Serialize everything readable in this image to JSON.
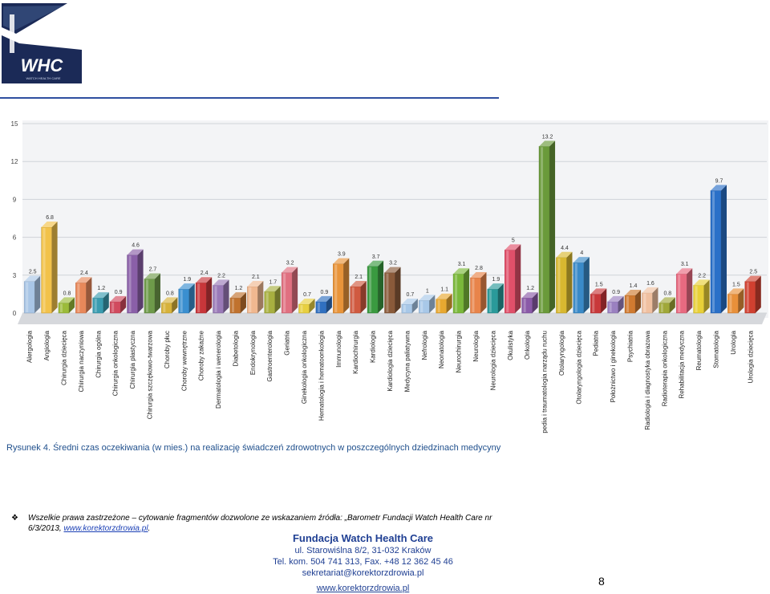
{
  "brand": {
    "logo_text": "WHC",
    "logo_subtext": "WATCH HEALTH CARE",
    "colors": {
      "navy": "#1b2a57",
      "rule": "#2f4fa0"
    }
  },
  "caption": {
    "label": "Rysunek 4.",
    "text": "Średni czas oczekiwania (w mies.) na realizację świadczeń zdrowotnych w poszczególnych dziedzinach medycyny"
  },
  "note": {
    "bullet": "❖",
    "text": "Wszelkie prawa zastrzeżone – cytowanie fragmentów dozwolone ze wskazaniem źródła: „Barometr Fundacji Watch Health Care nr 6/3/2013,",
    "link": "www.korektorzdrowia.pl",
    "end": "."
  },
  "footer": {
    "org": "Fundacja Watch Health Care",
    "address": "ul. Starowiślna 8/2, 31-032 Kraków",
    "phone": "Tel. kom. 504 741 313, Fax. +48 12 362 45 46",
    "email": "sekretariat@korektorzdrowia.pl",
    "web": "www.korektorzdrowia.pl"
  },
  "page_number": "8",
  "chart_data": {
    "type": "bar",
    "title": "",
    "xlabel": "",
    "ylabel": "",
    "ylim": [
      0,
      15
    ],
    "yticks": [
      "0",
      "3",
      "6",
      "9",
      "12",
      "15"
    ],
    "grid": true,
    "legend": "none",
    "categories": [
      "Alergologia",
      "Angiologia",
      "Chirurgia dziecięca",
      "Chirurgia naczyniowa",
      "Chirurgia ogólna",
      "Chirurgia onkologiczna",
      "Chirurgia plastyczna",
      "Chirurgia szczękowo-twarzowa",
      "Choroby płuc",
      "Choroby wewnętrzne",
      "Choroby zakaźne",
      "Dermatologia i wenerologia",
      "Diabetologia",
      "Endokrynologia",
      "Gastroenterologia",
      "Geriatria",
      "Ginekologia onkologiczna",
      "Hematologia i hematoonkologia",
      "Immunologia",
      "Kardiochirurgia",
      "Kardiologia",
      "Kardiologia dziecięca",
      "Medycyna paliatywna",
      "Nefrologia",
      "Neonatologia",
      "Neurochirurgia",
      "Neurologia",
      "Neurologia dziecięca",
      "Okulistyka",
      "Onkologia",
      "Ortopedia i traumatologia narządu ruchu",
      "Otolaryngologia",
      "Otolaryngologia dziecięca",
      "Pediatria",
      "Położnictwo i ginekologia",
      "Psychiatria",
      "Radiologia i diagnostyka obrazowa",
      "Radioterapia onkologiczna",
      "Rehabilitacja medyczna",
      "Reumatologia",
      "Stomatologia",
      "Urologia",
      "Urologia dziecięca"
    ],
    "values": [
      2.5,
      6.8,
      0.8,
      2.4,
      1.2,
      0.9,
      4.6,
      2.7,
      0.8,
      1.9,
      2.4,
      2.2,
      1.2,
      2.1,
      1.7,
      3.2,
      0.7,
      0.9,
      3.9,
      2.1,
      3.7,
      3.2,
      0.7,
      1,
      1.1,
      3.1,
      2.8,
      1.9,
      5,
      1.2,
      13.2,
      4.4,
      4,
      1.5,
      0.9,
      1.4,
      1.6,
      0.8,
      3.1,
      2.2,
      9.7,
      1.5,
      2.5
    ],
    "value_labels": [
      "2.5",
      "6.8",
      "0.8",
      "2.4",
      "1.2",
      "0.9",
      "4.6",
      "2.7",
      "0.8",
      "1.9",
      "2.4",
      "2.2",
      "1.2",
      "2.1",
      "1.7",
      "3.2",
      "0.7",
      "0.9",
      "3.9",
      "2.1",
      "3.7",
      "3.2",
      "0.7",
      "1",
      "1.1",
      "3.1",
      "2.8",
      "1.9",
      "5",
      "1.2",
      "13.2",
      "4.4",
      "4",
      "1.5",
      "0.9",
      "1.4",
      "1.6",
      "0.8",
      "3.1",
      "2.2",
      "9.7",
      "1.5",
      "2.5"
    ],
    "colors": [
      "#a9c6e6",
      "#f2c24a",
      "#9bbb3a",
      "#e8885a",
      "#3a9cb0",
      "#d14a5e",
      "#8a5fa8",
      "#6e9a4a",
      "#d7b23a",
      "#3a8fd0",
      "#c8363a",
      "#9a7ab8",
      "#c0722e",
      "#f0b890",
      "#a8b040",
      "#e07080",
      "#e8d040",
      "#3070c0",
      "#e8943a",
      "#d05a40",
      "#3a9a40",
      "#8a5a3a",
      "#a8c8e8",
      "#a8c8e8",
      "#e8a830",
      "#7ab83a",
      "#e8844a",
      "#2a9a9a",
      "#e0506a",
      "#8a5aa8",
      "#6a9a3a",
      "#d8b830",
      "#3a8ac8",
      "#c8383a",
      "#9a80c0",
      "#d07a30",
      "#f0c0a0",
      "#a0a838",
      "#e86a80",
      "#e8d038",
      "#2a70c8",
      "#e8903a",
      "#d04030"
    ]
  }
}
